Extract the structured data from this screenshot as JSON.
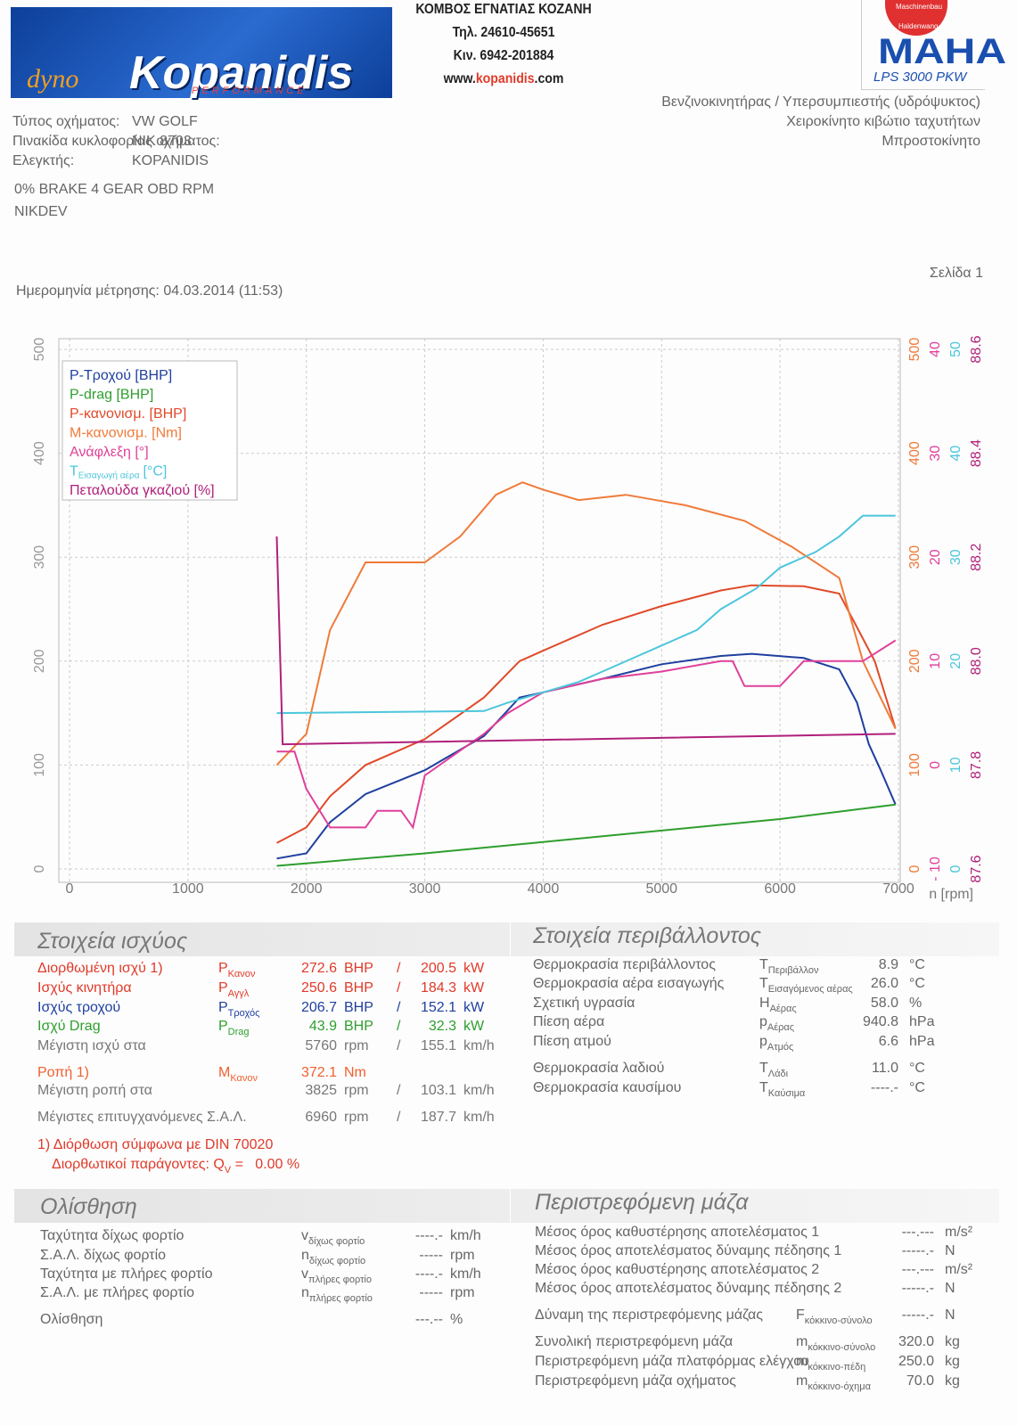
{
  "header": {
    "logo_script": "dyno",
    "logo": "Kopanidis",
    "logo_sub": "PERFORMANCE",
    "address": "ΚΟΜΒΟΣ ΕΓΝΑΤΙΑΣ ΚΟΖΑΝΗ",
    "phone": "Τηλ. 24610-45651",
    "mobile": "Κιν. 6942-201884",
    "web": [
      "www.",
      "kopanidis",
      ".com"
    ],
    "brand": "MAHA",
    "brand_ring": [
      "Maschinenbau",
      "Haldenwang"
    ],
    "model": "LPS 3000 PKW"
  },
  "vehicle": {
    "rows": [
      [
        "Τύπος οχήματος:",
        "VW GOLF"
      ],
      [
        "Πινακίδα κυκλοφορίας οχήματος:",
        "NIK 8703"
      ],
      [
        "Ελεγκτής:",
        "KOPANIDIS"
      ]
    ],
    "specs": [
      "Βενζινοκινητήρας / Υπερσυμπιεστής (υδρόψυκτος)",
      "Χειροκίνητο κιβώτιο ταχυτήτων",
      "Μπροστοκίνητο"
    ],
    "notes": [
      "0% BRAKE  4 GEAR OBD RPM",
      "NIKDEV"
    ],
    "page": "Σελίδα 1",
    "date": "Ημερομηνία μέτρησης: 04.03.2014 (11:53)"
  },
  "chart_data": {
    "type": "line",
    "grid": true,
    "legend": "upper left",
    "xlabel": "n [rpm]",
    "xlim": [
      0,
      7000
    ],
    "xticks": [
      0,
      1000,
      2000,
      3000,
      4000,
      5000,
      6000,
      7000
    ],
    "ylim": [
      0,
      500
    ],
    "yticks": [
      0,
      100,
      200,
      300,
      400,
      500
    ],
    "y2lim": [
      0,
      500
    ],
    "y2ticks": [
      0,
      100,
      200,
      300,
      400,
      500
    ],
    "y3lim": [
      -10,
      40
    ],
    "y3ticks": [
      {
        "value": -10,
        "label": "- 10"
      },
      0,
      10,
      20,
      30,
      40
    ],
    "y4lim": [
      0,
      50
    ],
    "y4ticks": [
      0,
      10,
      20,
      30,
      40,
      50
    ],
    "y5lim": [
      87.6,
      88.6
    ],
    "y5ticks": [
      87.6,
      87.8,
      {
        "value": 88,
        "label": "88.0"
      },
      88.2,
      88.4,
      88.6
    ],
    "series": [
      {
        "name": "P-Τροχού [BHP]",
        "color": "#1f3f9f",
        "axis": "y",
        "x": [
          1750,
          2000,
          2200,
          2500,
          3000,
          3500,
          3800,
          4000,
          4500,
          5000,
          5500,
          5760,
          6200,
          6500,
          6650,
          6750,
          6850,
          6975
        ],
        "values": [
          10,
          15,
          45,
          72,
          95,
          128,
          165,
          170,
          183,
          197,
          205,
          207,
          203,
          192,
          160,
          120,
          95,
          62
        ]
      },
      {
        "name": "P-drag [BHP]",
        "color": "#2e9e2e",
        "axis": "y",
        "x": [
          1750,
          3000,
          4000,
          5000,
          6000,
          6975
        ],
        "values": [
          3,
          15,
          26,
          37,
          48,
          62
        ]
      },
      {
        "name": "P-κανονισμ. [BHP]",
        "color": "#e04a2a",
        "axis": "y",
        "x": [
          1750,
          2000,
          2200,
          2500,
          3000,
          3500,
          3800,
          4000,
          4500,
          5000,
          5500,
          5760,
          6200,
          6500,
          6800,
          6975
        ],
        "values": [
          25,
          40,
          70,
          100,
          125,
          165,
          200,
          210,
          235,
          253,
          268,
          273,
          272,
          265,
          200,
          135
        ]
      },
      {
        "name": "M-κανονισμ. [Nm]",
        "color": "#f07a3a",
        "axis": "y2",
        "x": [
          1750,
          2000,
          2200,
          2500,
          3000,
          3300,
          3600,
          3825,
          4000,
          4300,
          4700,
          5200,
          5700,
          6100,
          6500,
          6700,
          6975
        ],
        "values": [
          100,
          130,
          230,
          295,
          295,
          320,
          360,
          372,
          365,
          355,
          360,
          350,
          335,
          310,
          280,
          200,
          135
        ]
      },
      {
        "name": "Ανάφλεξη [°]",
        "color": "#e0409a",
        "axis": "y3",
        "x": [
          1750,
          1900,
          2000,
          2200,
          2500,
          2600,
          2800,
          2900,
          3000,
          3500,
          3700,
          4000,
          4500,
          5000,
          5500,
          5600,
          5700,
          6000,
          6200,
          6700,
          6975
        ],
        "values": [
          1.3,
          1.3,
          -2.3,
          -6,
          -6,
          -4.4,
          -4.4,
          -6,
          -1,
          3,
          5,
          7,
          8.3,
          9,
          10,
          10,
          7.6,
          7.6,
          10,
          10,
          12
        ]
      },
      {
        "name": "T",
        "name_sub": "Εισαγωγή αέρα",
        "name_unit": "[°C]",
        "color": "#4cc6dc",
        "axis": "y4",
        "x": [
          1750,
          3500,
          3700,
          4000,
          4300,
          4500,
          4800,
          5000,
          5300,
          5500,
          5800,
          6000,
          6300,
          6500,
          6700,
          6975
        ],
        "values": [
          15,
          15.2,
          16,
          17,
          18,
          19,
          20.5,
          21.5,
          23,
          25,
          27,
          29,
          30.5,
          32,
          34,
          34
        ]
      },
      {
        "name": "Πεταλούδα γκαζιού [%]",
        "color": "#b0207a",
        "axis": "y5",
        "x": [
          1750,
          1800,
          6975
        ],
        "values": [
          88.24,
          87.84,
          87.86
        ]
      }
    ]
  },
  "power": {
    "title": "Στοιχεία ισχύος",
    "rows": [
      {
        "label": "Διορθωμένη ισχύ 1)",
        "sym": "P",
        "sub": "Κανον",
        "v1": "272.6",
        "u1": "BHP",
        "sep": "/",
        "v2": "200.5",
        "u2": "kW",
        "color": "#e03a2a"
      },
      {
        "label": "Ισχύς κινητήρα",
        "sym": "P",
        "sub": "Αγγλ",
        "v1": "250.6",
        "u1": "BHP",
        "sep": "/",
        "v2": "184.3",
        "u2": "kW",
        "color": "#e03a2a"
      },
      {
        "label": "Ισχύς τροχού",
        "sym": "P",
        "sub": "Τροχός",
        "v1": "206.7",
        "u1": "BHP",
        "sep": "/",
        "v2": "152.1",
        "u2": "kW",
        "color": "#1f3f9f"
      },
      {
        "label": "Ισχύ Drag",
        "sym": "P",
        "sub": "Drag",
        "v1": "43.9",
        "u1": "BHP",
        "sep": "/",
        "v2": "32.3",
        "u2": "kW",
        "color": "#2e9e2e"
      },
      {
        "label": "Μέγιστη ισχύ στα",
        "v1": "5760",
        "u1": "rpm",
        "sep": "/",
        "v2": "155.1",
        "u2": "km/h",
        "color": "#777777"
      },
      {
        "label": "Ροπή 1)",
        "sym": "M",
        "sub": "Κανον",
        "v1": "372.1",
        "u1": "Nm",
        "color": "#f06030"
      },
      {
        "label": "Μέγιστη ροπή στα",
        "v1": "3825",
        "u1": "rpm",
        "sep": "/",
        "v2": "103.1",
        "u2": "km/h",
        "color": "#777777"
      },
      {
        "label": "Μέγιστες επιτυγχανόμενες Σ.Α.Λ.",
        "v1": "6960",
        "u1": "rpm",
        "sep": "/",
        "v2": "187.7",
        "u2": "km/h",
        "color": "#777777"
      }
    ],
    "footnote": "1) Διόρθωση σύμφωνα με DIN 70020",
    "factors": [
      "Διορθωτικοί παράγοντες: Q",
      "V",
      " =   0.00 %"
    ]
  },
  "environment": {
    "title": "Στοιχεία περιβάλλοντος",
    "rows": [
      {
        "label": "Θερμοκρασία περιβάλλοντος",
        "sym": "T",
        "sub": "Περιβάλλον",
        "value": "8.9",
        "unit": "°C"
      },
      {
        "label": "Θερμοκρασία αέρα εισαγωγής",
        "sym": "T",
        "sub": "Εισαγόμενος αέρας",
        "value": "26.0",
        "unit": "°C"
      },
      {
        "label": "Σχετική υγρασία",
        "sym": "H",
        "sub": "Αέρας",
        "value": "58.0",
        "unit": "%"
      },
      {
        "label": "Πίεση αέρα",
        "sym": "p",
        "sub": "Αέρας",
        "value": "940.8",
        "unit": "hPa"
      },
      {
        "label": "Πίεση ατμού",
        "sym": "p",
        "sub": "Ατμός",
        "value": "6.6",
        "unit": "hPa"
      },
      {
        "label": "Θερμοκρασία λαδιού",
        "sym": "T",
        "sub": "Λάδι",
        "value": "11.0",
        "unit": "°C"
      },
      {
        "label": "Θερμοκρασία καυσίμου",
        "sym": "T",
        "sub": "Καύσιμα",
        "value": "----.-",
        "unit": "°C"
      }
    ]
  },
  "slip": {
    "title": "Ολίσθηση",
    "rows": [
      {
        "label": "Ταχύτητα δίχως φορτίο",
        "sym": "v",
        "sub": "δίχως φορτίο",
        "value": "----.-",
        "unit": "km/h"
      },
      {
        "label": "Σ.Α.Λ. δίχως φορτίο",
        "sym": "n",
        "sub": "δίχως φορτίο",
        "value": "-----",
        "unit": "rpm"
      },
      {
        "label": "Ταχύτητα με πλήρες φορτίο",
        "sym": "v",
        "sub": "πλήρες φορτίο",
        "value": "----.-",
        "unit": "km/h"
      },
      {
        "label": "Σ.Α.Λ. με πλήρες φορτίο",
        "sym": "n",
        "sub": "πλήρες φορτίο",
        "value": "-----",
        "unit": "rpm"
      },
      {
        "label": "Ολίσθηση",
        "value": "---.--",
        "unit": "%"
      }
    ]
  },
  "mass": {
    "title": "Περιστρεφόμενη μάζα",
    "rows": [
      {
        "label": "Μέσος όρος καθυστέρησης αποτελέσματος 1",
        "value": "---.---",
        "unit": "m/s²"
      },
      {
        "label": "Μέσος όρος αποτελέσματος δύναμης πέδησης 1",
        "value": "-----.-",
        "unit": "N"
      },
      {
        "label": "Μέσος όρος καθυστέρησης αποτελέσματος 2",
        "value": "---.---",
        "unit": "m/s²"
      },
      {
        "label": "Μέσος όρος αποτελέσματος δύναμης πέδησης 2",
        "value": "-----.-",
        "unit": "N"
      },
      {
        "label": "Δύναμη της περιστρεφόμενης μάζας",
        "sym": "F",
        "sub": "κόκκινο-σύνολο",
        "value": "-----.-",
        "unit": "N"
      },
      {
        "label": "Συνολική περιστρεφόμενη μάζα",
        "sym": "m",
        "sub": "κόκκινο-σύνολο",
        "value": "320.0",
        "unit": "kg"
      },
      {
        "label": "Περιστρεφόμενη μάζα πλατφόρμας ελέγχου",
        "sym": "m",
        "sub": "κόκκινο-πέδη",
        "value": "250.0",
        "unit": "kg"
      },
      {
        "label": "Περιστρεφόμενη μάζα οχήματος",
        "sym": "m",
        "sub": "κόκκινο-όχημα",
        "value": "70.0",
        "unit": "kg"
      }
    ]
  }
}
